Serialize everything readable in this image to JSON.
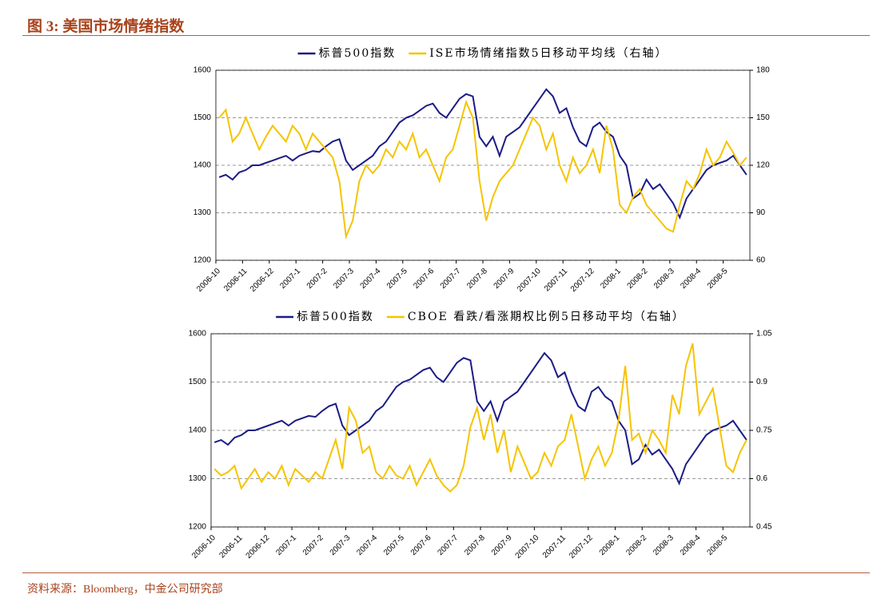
{
  "header": {
    "title": "图 3:  美国市场情绪指数"
  },
  "footer": {
    "source": "资料来源：Bloomberg，中金公司研究部"
  },
  "chart_data": [
    {
      "type": "line",
      "categories": [
        "2006-10",
        null,
        null,
        null,
        "2006-11",
        null,
        null,
        null,
        "2006-12",
        null,
        null,
        null,
        "2007-1",
        null,
        null,
        null,
        "2007-2",
        null,
        null,
        null,
        "2007-3",
        null,
        null,
        null,
        "2007-4",
        null,
        null,
        null,
        "2007-5",
        null,
        null,
        null,
        "2007-6",
        null,
        null,
        null,
        "2007-7",
        null,
        null,
        null,
        "2007-8",
        null,
        null,
        null,
        "2007-9",
        null,
        null,
        null,
        "2007-10",
        null,
        null,
        null,
        "2007-11",
        null,
        null,
        null,
        "2007-12",
        null,
        null,
        null,
        "2008-1",
        null,
        null,
        null,
        "2008-2",
        null,
        null,
        null,
        "2008-3",
        null,
        null,
        null,
        "2008-4",
        null,
        null,
        null,
        "2008-5",
        null,
        null,
        null
      ],
      "ylim": [
        1200,
        1600
      ],
      "yticks": [
        1200,
        1300,
        1400,
        1500,
        1600
      ],
      "y2lim": [
        60,
        180
      ],
      "y2ticks": [
        60,
        90,
        120,
        150,
        180
      ],
      "grid": true,
      "series": [
        {
          "name": "标普500指数",
          "color": "#1c1c86",
          "values": [
            1375,
            1380,
            1370,
            1385,
            1390,
            1400,
            1400,
            1405,
            1410,
            1415,
            1420,
            1410,
            1420,
            1425,
            1430,
            1428,
            1440,
            1450,
            1455,
            1410,
            1390,
            1400,
            1410,
            1420,
            1440,
            1450,
            1470,
            1490,
            1500,
            1505,
            1515,
            1525,
            1530,
            1510,
            1500,
            1520,
            1540,
            1550,
            1545,
            1460,
            1440,
            1460,
            1420,
            1460,
            1470,
            1480,
            1500,
            1520,
            1540,
            1560,
            1545,
            1510,
            1520,
            1480,
            1450,
            1440,
            1480,
            1490,
            1470,
            1460,
            1420,
            1400,
            1330,
            1340,
            1370,
            1350,
            1360,
            1340,
            1320,
            1290,
            1330,
            1350,
            1370,
            1390,
            1400,
            1405,
            1410,
            1420,
            1400,
            1380
          ]
        },
        {
          "name": "ISE市场情绪指数5日移动平均线（右轴）",
          "color": "#f5c400",
          "axis": "y2",
          "values": [
            150,
            155,
            135,
            140,
            150,
            140,
            130,
            138,
            145,
            140,
            135,
            145,
            140,
            130,
            140,
            135,
            130,
            125,
            110,
            75,
            85,
            110,
            120,
            115,
            120,
            130,
            125,
            135,
            130,
            140,
            125,
            130,
            120,
            110,
            125,
            130,
            145,
            160,
            150,
            110,
            85,
            100,
            110,
            115,
            120,
            130,
            140,
            150,
            145,
            130,
            140,
            120,
            110,
            125,
            115,
            120,
            130,
            115,
            145,
            130,
            95,
            90,
            100,
            105,
            95,
            90,
            85,
            80,
            78,
            95,
            110,
            105,
            115,
            130,
            120,
            125,
            135,
            128,
            120,
            125
          ]
        }
      ]
    },
    {
      "type": "line",
      "categories": [
        "2006-10",
        null,
        null,
        null,
        "2006-11",
        null,
        null,
        null,
        "2006-12",
        null,
        null,
        null,
        "2007-1",
        null,
        null,
        null,
        "2007-2",
        null,
        null,
        null,
        "2007-3",
        null,
        null,
        null,
        "2007-4",
        null,
        null,
        null,
        "2007-5",
        null,
        null,
        null,
        "2007-6",
        null,
        null,
        null,
        "2007-7",
        null,
        null,
        null,
        "2007-8",
        null,
        null,
        null,
        "2007-9",
        null,
        null,
        null,
        "2007-10",
        null,
        null,
        null,
        "2007-11",
        null,
        null,
        null,
        "2007-12",
        null,
        null,
        null,
        "2008-1",
        null,
        null,
        null,
        "2008-2",
        null,
        null,
        null,
        "2008-3",
        null,
        null,
        null,
        "2008-4",
        null,
        null,
        null,
        "2008-5",
        null,
        null,
        null
      ],
      "ylim": [
        1200,
        1600
      ],
      "yticks": [
        1200,
        1300,
        1400,
        1500,
        1600
      ],
      "y2lim": [
        0.45,
        1.05
      ],
      "y2ticks": [
        0.45,
        0.6,
        0.75,
        0.9,
        1.05
      ],
      "grid": true,
      "series": [
        {
          "name": "标普500指数",
          "color": "#1c1c86",
          "values": [
            1375,
            1380,
            1370,
            1385,
            1390,
            1400,
            1400,
            1405,
            1410,
            1415,
            1420,
            1410,
            1420,
            1425,
            1430,
            1428,
            1440,
            1450,
            1455,
            1410,
            1390,
            1400,
            1410,
            1420,
            1440,
            1450,
            1470,
            1490,
            1500,
            1505,
            1515,
            1525,
            1530,
            1510,
            1500,
            1520,
            1540,
            1550,
            1545,
            1460,
            1440,
            1460,
            1420,
            1460,
            1470,
            1480,
            1500,
            1520,
            1540,
            1560,
            1545,
            1510,
            1520,
            1480,
            1450,
            1440,
            1480,
            1490,
            1470,
            1460,
            1420,
            1400,
            1330,
            1340,
            1370,
            1350,
            1360,
            1340,
            1320,
            1290,
            1330,
            1350,
            1370,
            1390,
            1400,
            1405,
            1410,
            1420,
            1400,
            1380
          ]
        },
        {
          "name": "CBOE 看跌/看涨期权比例5日移动平均（右轴）",
          "color": "#f5c400",
          "axis": "y2",
          "values": [
            0.63,
            0.61,
            0.62,
            0.64,
            0.57,
            0.6,
            0.63,
            0.59,
            0.62,
            0.6,
            0.64,
            0.58,
            0.63,
            0.61,
            0.59,
            0.62,
            0.6,
            0.66,
            0.72,
            0.63,
            0.82,
            0.78,
            0.68,
            0.7,
            0.62,
            0.6,
            0.64,
            0.61,
            0.6,
            0.64,
            0.58,
            0.62,
            0.66,
            0.61,
            0.58,
            0.56,
            0.58,
            0.64,
            0.76,
            0.82,
            0.72,
            0.8,
            0.68,
            0.75,
            0.62,
            0.7,
            0.65,
            0.6,
            0.62,
            0.68,
            0.64,
            0.7,
            0.72,
            0.8,
            0.7,
            0.6,
            0.66,
            0.7,
            0.64,
            0.68,
            0.78,
            0.95,
            0.72,
            0.74,
            0.68,
            0.75,
            0.72,
            0.68,
            0.86,
            0.8,
            0.95,
            1.02,
            0.8,
            0.84,
            0.88,
            0.76,
            0.64,
            0.62,
            0.68,
            0.72
          ]
        }
      ]
    }
  ]
}
